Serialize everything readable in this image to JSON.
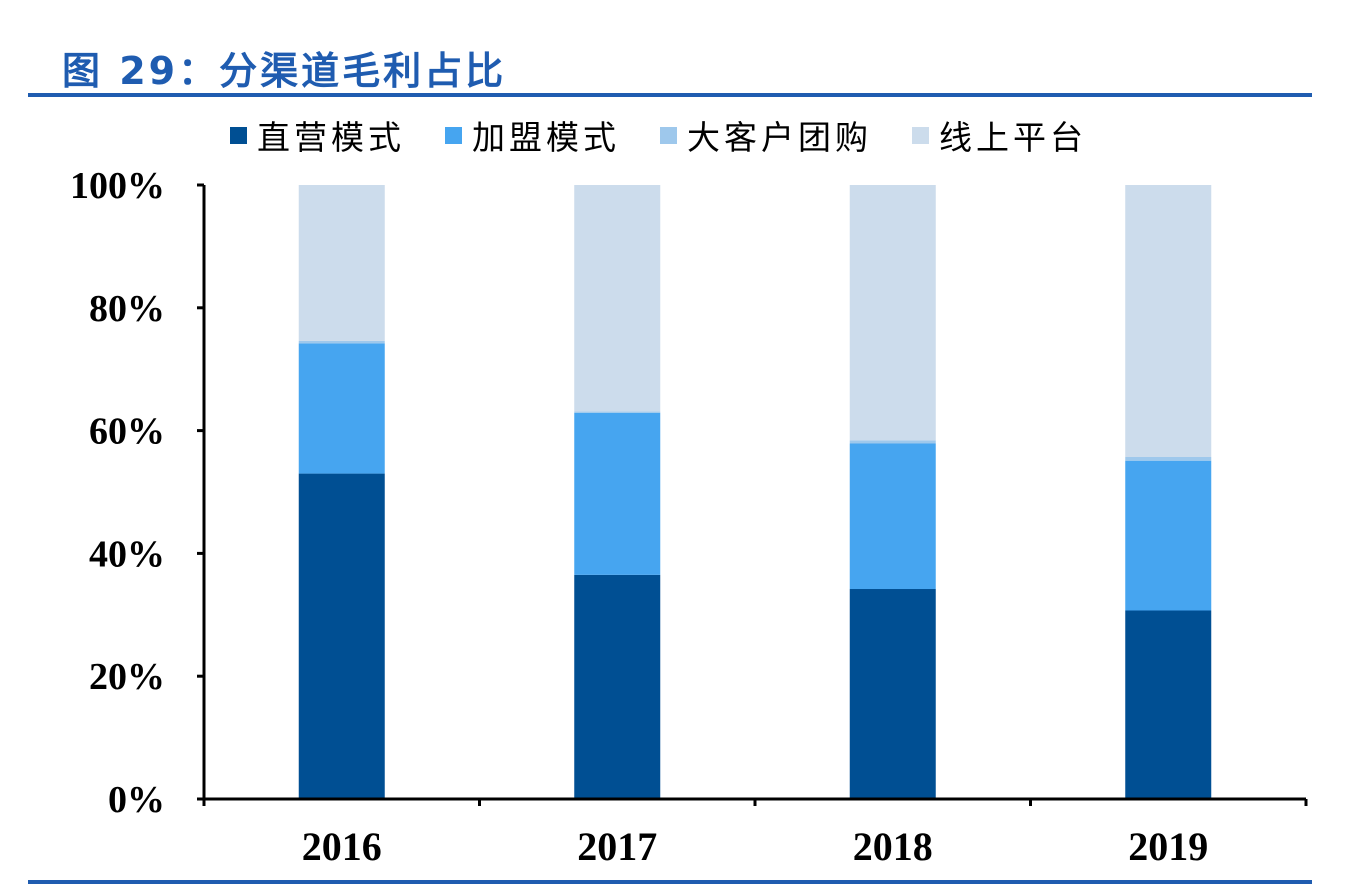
{
  "figure": {
    "title": "图 29：分渠道毛利占比"
  },
  "colors": {
    "title": "#1f5cb0",
    "rule": "#1f5cb0",
    "axis": "#000000"
  },
  "chart_data": {
    "type": "bar",
    "stacked": true,
    "categories": [
      "2016",
      "2017",
      "2018",
      "2019"
    ],
    "series": [
      {
        "name": "直营模式",
        "color": "#004f93",
        "values": [
          53.0,
          36.5,
          34.2,
          30.7
        ]
      },
      {
        "name": "加盟模式",
        "color": "#46a5f0",
        "values": [
          21.2,
          26.4,
          23.7,
          24.4
        ]
      },
      {
        "name": "大客户团购",
        "color": "#9ec8ec",
        "values": [
          0.4,
          0.2,
          0.5,
          0.6
        ]
      },
      {
        "name": "线上平台",
        "color": "#ccdcec",
        "values": [
          25.4,
          36.9,
          41.6,
          44.3
        ]
      }
    ],
    "ylim": [
      0,
      100
    ],
    "yticks": [
      "0%",
      "20%",
      "40%",
      "60%",
      "80%",
      "100%"
    ],
    "xlabel": "",
    "ylabel": "",
    "grid": false,
    "legend": "top"
  }
}
